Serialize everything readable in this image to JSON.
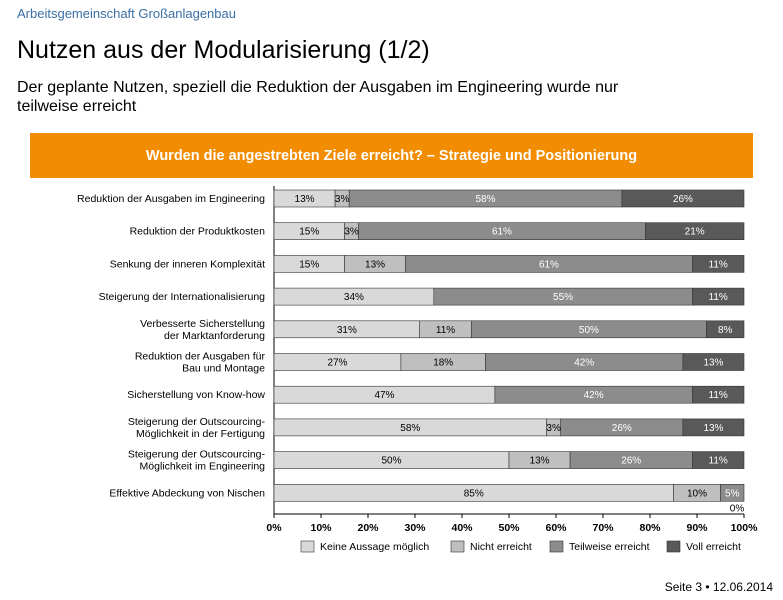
{
  "header": {
    "org": "Arbeitsgemeinschaft Großanlagenbau",
    "title": "Nutzen aus der Modularisierung (1/2)",
    "subtitle": "Der geplante Nutzen, speziell die Reduktion der Ausgaben im Engineering wurde nur teilweise erreicht"
  },
  "chart_data": {
    "type": "bar",
    "orientation": "horizontal",
    "stacked": true,
    "title": "Wurden die angestrebten Ziele erreicht? – Strategie und Positionierung",
    "categories": [
      [
        "Reduktion der Ausgaben im Engineering"
      ],
      [
        "Reduktion der Produktkosten"
      ],
      [
        "Senkung der inneren Komplexität"
      ],
      [
        "Steigerung der Internationalisierung"
      ],
      [
        "Verbesserte Sicherstellung",
        "der Marktanforderung"
      ],
      [
        "Reduktion der Ausgaben für",
        "Bau und Montage"
      ],
      [
        "Sicherstellung von Know-how"
      ],
      [
        "Steigerung der Outscourcing-",
        "Möglichkeit in der Fertigung"
      ],
      [
        "Steigerung der Outscourcing-",
        "Möglichkeit im Engineering"
      ],
      [
        "Effektive Abdeckung von Nischen"
      ]
    ],
    "series": [
      {
        "name": "Keine Aussage möglich",
        "color": "#d9d9d9",
        "values": [
          13,
          15,
          15,
          34,
          31,
          27,
          47,
          58,
          50,
          85
        ]
      },
      {
        "name": "Nicht erreicht",
        "color": "#bfbfbf",
        "values": [
          3,
          3,
          13,
          0,
          11,
          18,
          0,
          3,
          13,
          10
        ]
      },
      {
        "name": "Teilweise erreicht",
        "color": "#8c8c8c",
        "values": [
          58,
          61,
          61,
          55,
          50,
          42,
          42,
          26,
          26,
          5
        ]
      },
      {
        "name": "Voll erreicht",
        "color": "#595959",
        "values": [
          26,
          21,
          11,
          11,
          8,
          13,
          11,
          13,
          11,
          0
        ]
      }
    ],
    "xlim": [
      0,
      100
    ],
    "xticks": [
      "0%",
      "10%",
      "20%",
      "30%",
      "40%",
      "50%",
      "60%",
      "70%",
      "80%",
      "90%",
      "100%"
    ],
    "extra_labels": [
      "0%"
    ]
  },
  "footer": {
    "page": "Seite 3 • 12.06.2014"
  }
}
